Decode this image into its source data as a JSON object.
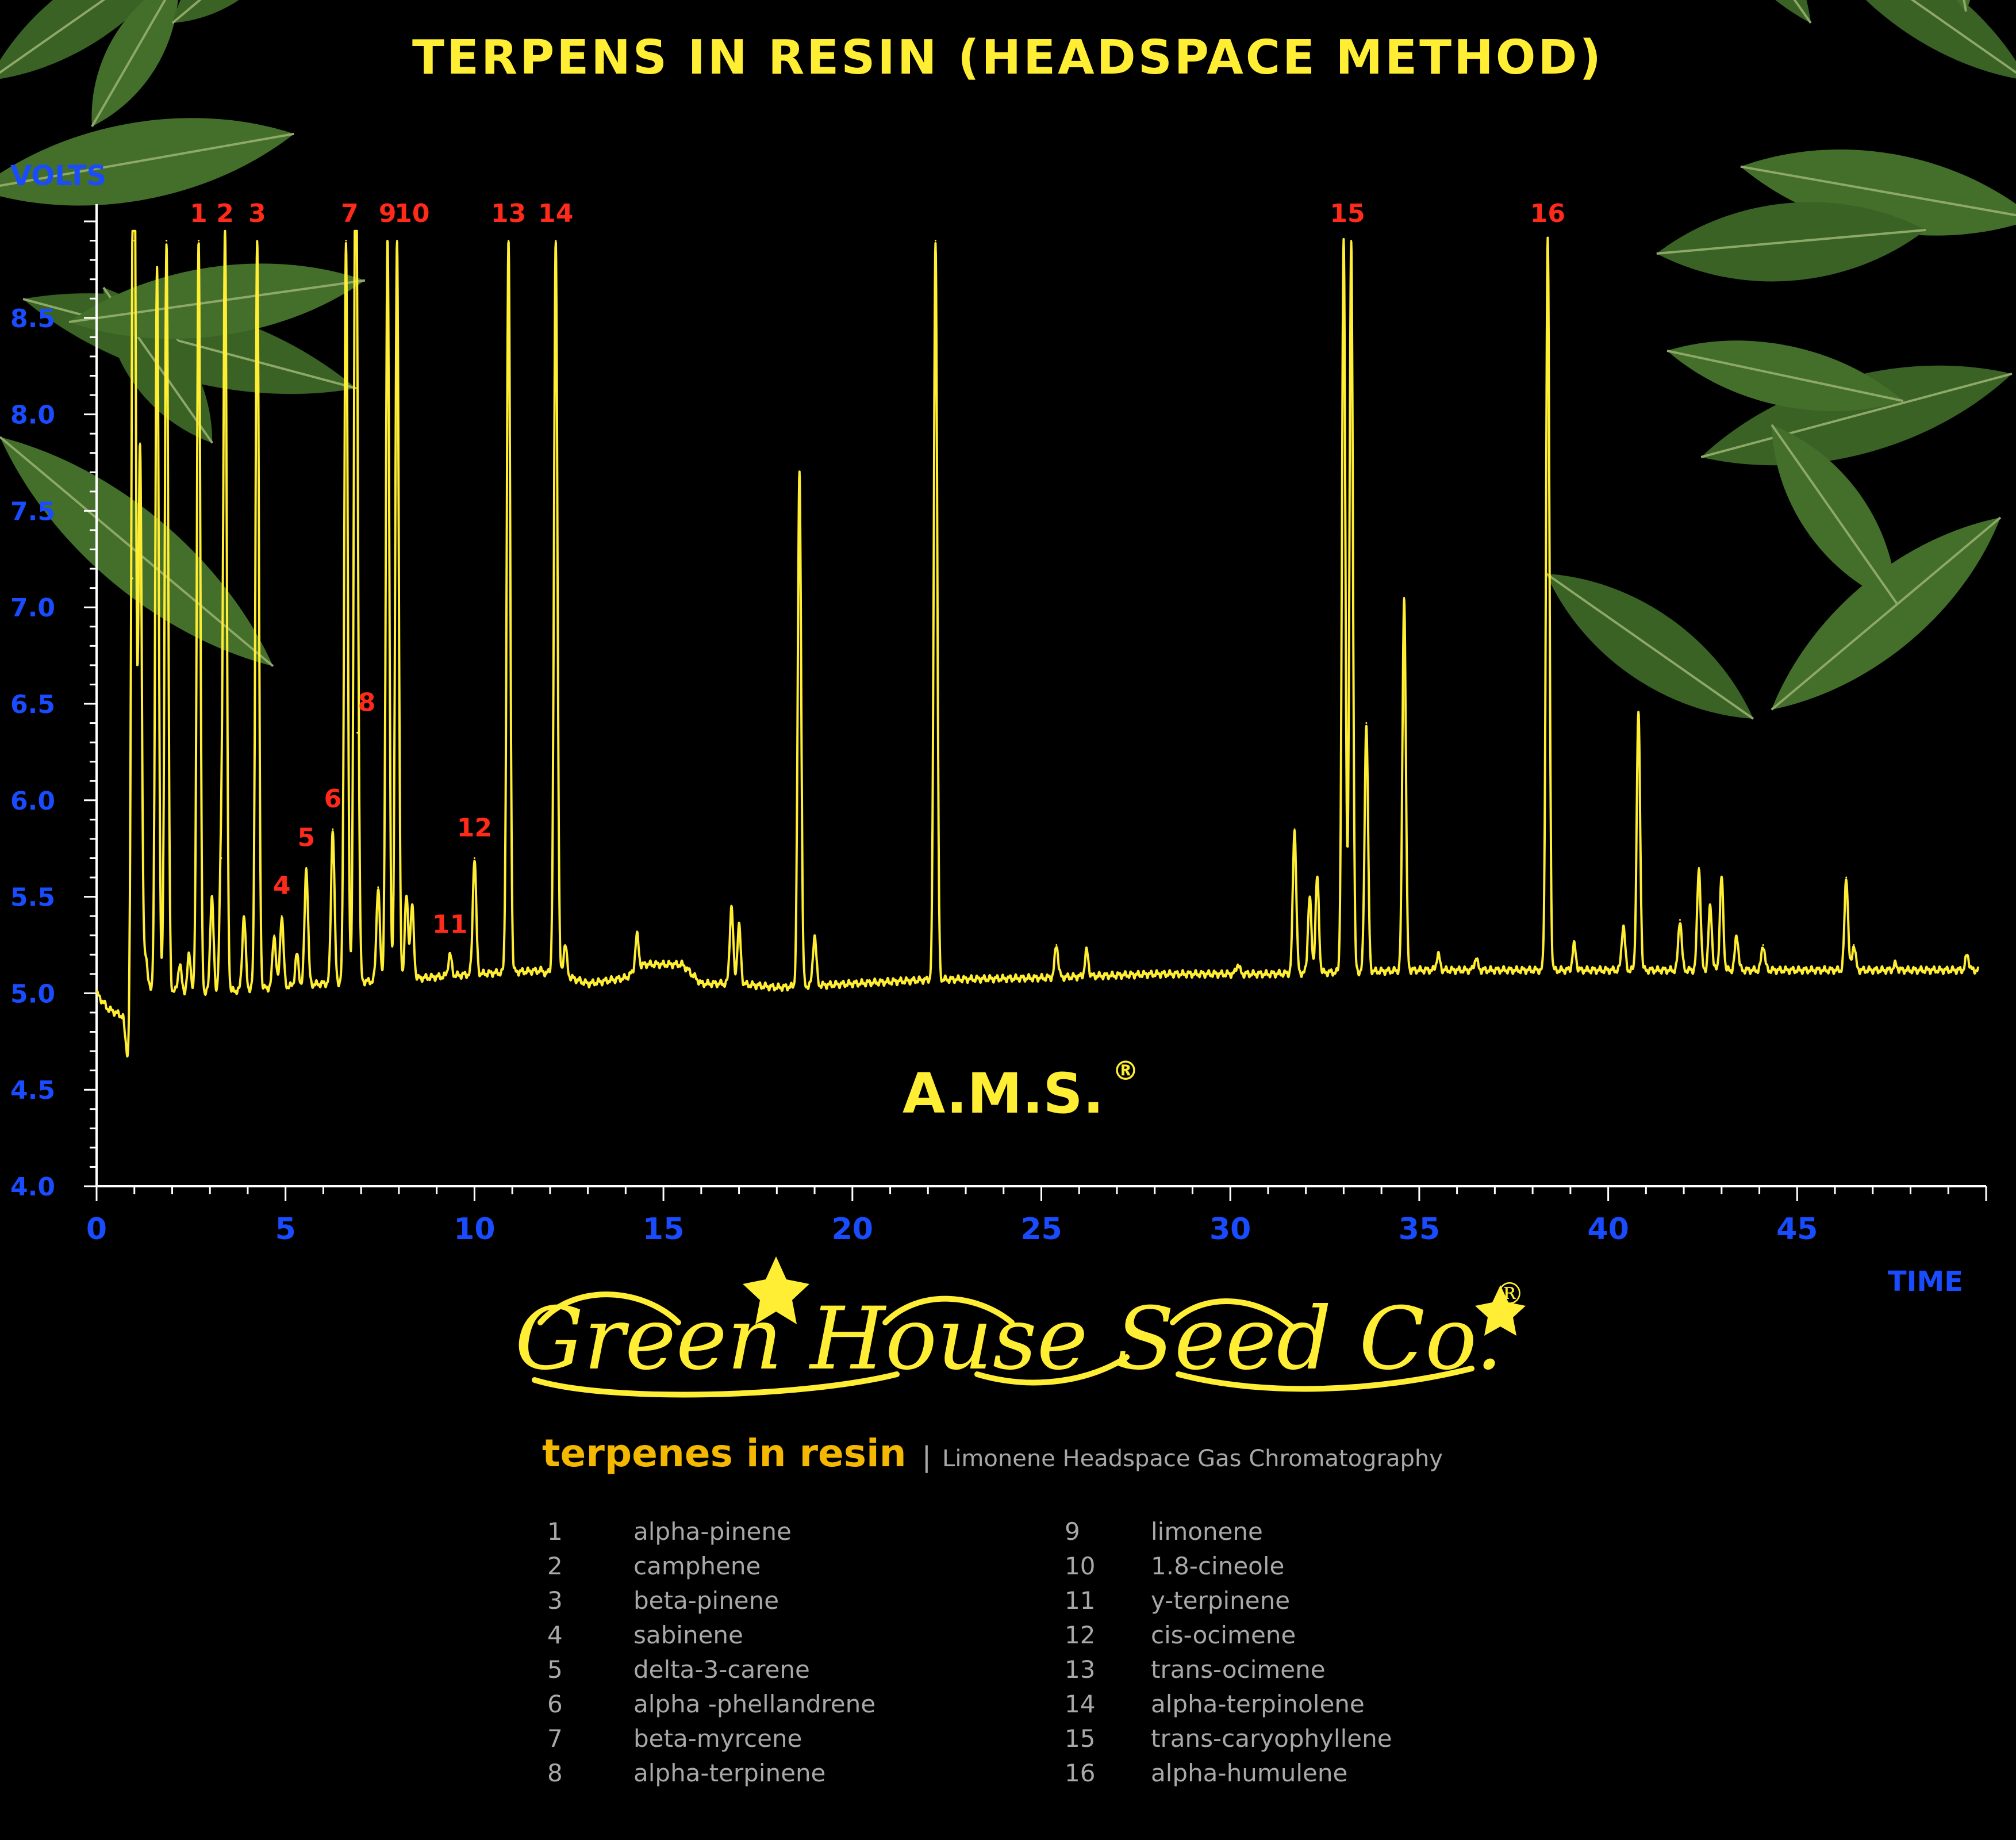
{
  "colors": {
    "background": "#000000",
    "trace": "#ffee33",
    "axis": "#ffffff",
    "axis_text": "#1a4cff",
    "peak_labels": "#ff2a1a",
    "title": "#ffee33",
    "leaf": "#3f6b28",
    "legend_text": "#a8a8a8",
    "subtitle_accent": "#f5b800"
  },
  "decor": {
    "leaf_icon": "cannabis-leaf-icon"
  },
  "brand": {
    "ams": "A.M.S.",
    "ams_mark": "®",
    "logo": "Green House Seed Co.",
    "logo_mark": "®"
  },
  "subtitle": {
    "main": "terpenes in resin",
    "separator": "|",
    "desc": "Limonene Headspace Gas Chromatography"
  },
  "chart_data": {
    "type": "line",
    "title": "TERPENS IN RESIN (HEADSPACE METHOD)",
    "xlabel": "TIME",
    "ylabel": "VOLTS",
    "xlim": [
      0,
      50
    ],
    "ylim": [
      4.0,
      9.0
    ],
    "x_ticks": [
      0,
      5,
      10,
      15,
      20,
      25,
      30,
      35,
      40,
      45
    ],
    "y_ticks": [
      4.0,
      4.5,
      5.0,
      5.5,
      6.0,
      6.5,
      7.0,
      7.5,
      8.0,
      8.5
    ],
    "y_tick_labels": [
      "4.0",
      "4.5",
      "5.0",
      "5.5",
      "6.0",
      "6.5",
      "7.0",
      "7.5",
      "8.0",
      "8.5"
    ],
    "grid": false,
    "legend": "below",
    "baseline": [
      [
        0,
        5.0
      ],
      [
        0.3,
        4.92
      ],
      [
        0.7,
        4.88
      ],
      [
        0.85,
        4.6
      ],
      [
        1.0,
        5.02
      ],
      [
        3,
        5.0
      ],
      [
        4,
        5.02
      ],
      [
        6,
        5.05
      ],
      [
        8,
        5.07
      ],
      [
        10,
        5.1
      ],
      [
        12,
        5.12
      ],
      [
        13,
        5.05
      ],
      [
        14,
        5.08
      ],
      [
        14.5,
        5.15
      ],
      [
        15.5,
        5.15
      ],
      [
        16,
        5.05
      ],
      [
        17,
        5.05
      ],
      [
        18,
        5.03
      ],
      [
        20,
        5.05
      ],
      [
        22,
        5.07
      ],
      [
        25,
        5.08
      ],
      [
        28,
        5.1
      ],
      [
        31,
        5.1
      ],
      [
        35,
        5.12
      ],
      [
        40,
        5.12
      ],
      [
        45,
        5.12
      ],
      [
        49.8,
        5.12
      ]
    ],
    "peaks": [
      {
        "x": 0.95,
        "y": 7.15
      },
      {
        "x": 1.0,
        "y": 8.9
      },
      {
        "x": 1.15,
        "y": 7.85
      },
      {
        "x": 1.3,
        "y": 5.2
      },
      {
        "x": 1.6,
        "y": 8.75
      },
      {
        "x": 1.85,
        "y": 8.9
      },
      {
        "x": 2.2,
        "y": 5.15
      },
      {
        "x": 2.45,
        "y": 5.2
      },
      {
        "x": 2.7,
        "y": 8.9
      },
      {
        "x": 3.05,
        "y": 5.5
      },
      {
        "x": 3.3,
        "y": 5.7
      },
      {
        "x": 3.4,
        "y": 8.9
      },
      {
        "x": 3.9,
        "y": 5.4
      },
      {
        "x": 4.25,
        "y": 8.9
      },
      {
        "x": 4.7,
        "y": 5.3
      },
      {
        "x": 4.9,
        "y": 5.4
      },
      {
        "x": 5.3,
        "y": 5.2
      },
      {
        "x": 5.55,
        "y": 5.65
      },
      {
        "x": 6.25,
        "y": 5.85
      },
      {
        "x": 6.6,
        "y": 8.9
      },
      {
        "x": 6.85,
        "y": 8.9
      },
      {
        "x": 6.9,
        "y": 6.35
      },
      {
        "x": 7.45,
        "y": 5.55
      },
      {
        "x": 7.7,
        "y": 8.9
      },
      {
        "x": 7.95,
        "y": 8.9
      },
      {
        "x": 8.2,
        "y": 5.5
      },
      {
        "x": 8.35,
        "y": 5.45
      },
      {
        "x": 9.35,
        "y": 5.2
      },
      {
        "x": 10.0,
        "y": 5.7
      },
      {
        "x": 10.9,
        "y": 8.9
      },
      {
        "x": 11.9,
        "y": 5.1
      },
      {
        "x": 12.15,
        "y": 8.9
      },
      {
        "x": 12.4,
        "y": 5.25
      },
      {
        "x": 14.3,
        "y": 5.3
      },
      {
        "x": 16.8,
        "y": 5.45
      },
      {
        "x": 17.0,
        "y": 5.35
      },
      {
        "x": 18.6,
        "y": 7.7
      },
      {
        "x": 19.0,
        "y": 5.3
      },
      {
        "x": 22.2,
        "y": 8.9
      },
      {
        "x": 25.4,
        "y": 5.25
      },
      {
        "x": 26.2,
        "y": 5.22
      },
      {
        "x": 30.2,
        "y": 5.15
      },
      {
        "x": 31.7,
        "y": 5.85
      },
      {
        "x": 32.1,
        "y": 5.5
      },
      {
        "x": 32.3,
        "y": 5.6
      },
      {
        "x": 33.0,
        "y": 8.9
      },
      {
        "x": 33.2,
        "y": 8.9
      },
      {
        "x": 33.6,
        "y": 6.4
      },
      {
        "x": 34.6,
        "y": 7.05
      },
      {
        "x": 35.5,
        "y": 5.2
      },
      {
        "x": 36.5,
        "y": 5.18
      },
      {
        "x": 38.4,
        "y": 8.9
      },
      {
        "x": 39.1,
        "y": 5.25
      },
      {
        "x": 40.4,
        "y": 5.35
      },
      {
        "x": 40.8,
        "y": 6.45
      },
      {
        "x": 41.9,
        "y": 5.38
      },
      {
        "x": 42.4,
        "y": 5.65
      },
      {
        "x": 42.7,
        "y": 5.45
      },
      {
        "x": 43.0,
        "y": 5.6
      },
      {
        "x": 43.4,
        "y": 5.3
      },
      {
        "x": 44.1,
        "y": 5.25
      },
      {
        "x": 46.3,
        "y": 5.6
      },
      {
        "x": 46.5,
        "y": 5.25
      },
      {
        "x": 47.6,
        "y": 5.15
      },
      {
        "x": 49.5,
        "y": 5.2
      }
    ],
    "peak_labels": [
      {
        "id": "1",
        "x": 2.7,
        "y": 8.9
      },
      {
        "id": "2",
        "x": 3.4,
        "y": 8.9
      },
      {
        "id": "3",
        "x": 4.25,
        "y": 8.9
      },
      {
        "id": "4",
        "x": 4.9,
        "y": 5.4
      },
      {
        "id": "5",
        "x": 5.55,
        "y": 5.65
      },
      {
        "id": "6",
        "x": 6.25,
        "y": 5.85
      },
      {
        "id": "7",
        "x": 6.7,
        "y": 8.9
      },
      {
        "id": "8",
        "x": 7.15,
        "y": 6.35
      },
      {
        "id": "9",
        "x": 7.7,
        "y": 8.9
      },
      {
        "id": "10",
        "x": 8.35,
        "y": 8.9
      },
      {
        "id": "11",
        "x": 9.35,
        "y": 5.2
      },
      {
        "id": "12",
        "x": 10.0,
        "y": 5.7
      },
      {
        "id": "13",
        "x": 10.9,
        "y": 8.9
      },
      {
        "id": "14",
        "x": 12.15,
        "y": 8.9
      },
      {
        "id": "15",
        "x": 33.1,
        "y": 8.9
      },
      {
        "id": "16",
        "x": 38.4,
        "y": 8.9
      }
    ],
    "compounds": [
      {
        "num": "1",
        "name": "alpha-pinene"
      },
      {
        "num": "2",
        "name": "camphene"
      },
      {
        "num": "3",
        "name": "beta-pinene"
      },
      {
        "num": "4",
        "name": "sabinene"
      },
      {
        "num": "5",
        "name": "delta-3-carene"
      },
      {
        "num": "6",
        "name": "alpha -phellandrene"
      },
      {
        "num": "7",
        "name": "beta-myrcene"
      },
      {
        "num": "8",
        "name": "alpha-terpinene"
      },
      {
        "num": "9",
        "name": "limonene"
      },
      {
        "num": "10",
        "name": "1.8-cineole"
      },
      {
        "num": "11",
        "name": "y-terpinene"
      },
      {
        "num": "12",
        "name": "cis-ocimene"
      },
      {
        "num": "13",
        "name": "trans-ocimene"
      },
      {
        "num": "14",
        "name": "alpha-terpinolene"
      },
      {
        "num": "15",
        "name": "trans-caryophyllene"
      },
      {
        "num": "16",
        "name": "alpha-humulene"
      }
    ]
  }
}
